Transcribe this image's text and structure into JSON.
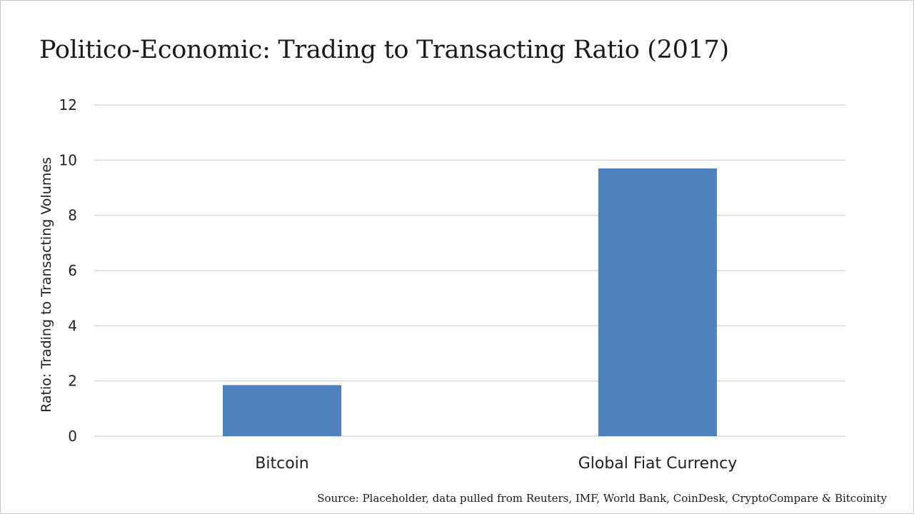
{
  "chart_data": {
    "type": "bar",
    "title": "Politico-Economic: Trading to Transacting Ratio (2017)",
    "categories": [
      "Bitcoin",
      "Global Fiat Currency"
    ],
    "values": [
      1.85,
      9.7
    ],
    "ylabel": "Ratio: Trading to Transacting Volumes",
    "xlabel": "",
    "ylim": [
      0,
      12
    ],
    "yticks": [
      "0",
      "2",
      "4",
      "6",
      "8",
      "10",
      "12"
    ],
    "grid": true,
    "bar_color": "#4f81bd",
    "grid_color": "#d9d9d9"
  },
  "source_note": "Source: Placeholder, data pulled from Reuters, IMF, World Bank, CoinDesk, CryptoCompare & Bitcoinity"
}
